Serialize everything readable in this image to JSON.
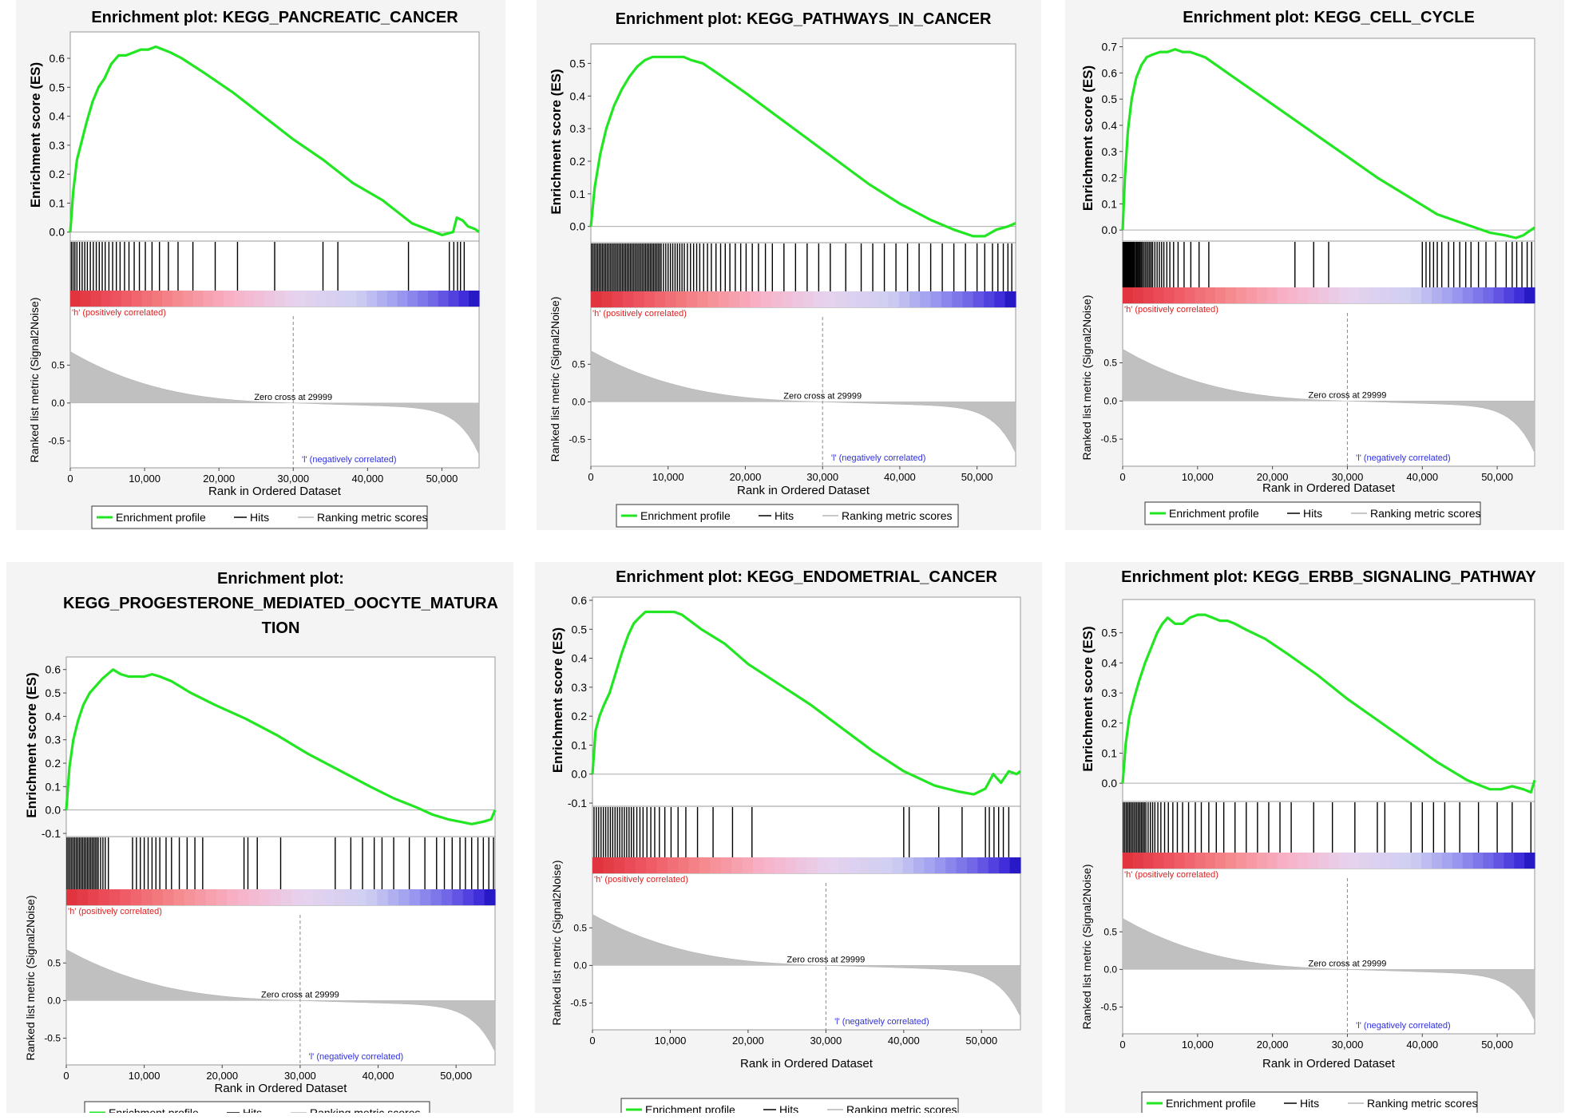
{
  "common": {
    "es_ylabel": "Enrichment score (ES)",
    "metric_ylabel": "Ranked list metric (Signal2Noise)",
    "xlabel": "Rank in Ordered Dataset",
    "pos_label": "'h' (positively correlated)",
    "neg_label": "'l' (negatively correlated)",
    "zero_cross": "Zero cross at 29999",
    "legend": [
      "Enrichment profile",
      "Hits",
      "Ranking metric scores"
    ],
    "x_ticks": [
      "0",
      "10,000",
      "20,000",
      "30,000",
      "40,000",
      "50,000"
    ],
    "colors": {
      "profile": "#22e622",
      "hits": "#000000",
      "metric": "#c0c0c0",
      "pos_text": "#e02020",
      "neg_text": "#3030e0"
    }
  },
  "chart_data": [
    {
      "type": "line",
      "title_lines": [
        "Enrichment plot: KEGG_PANCREATIC_CANCER"
      ],
      "xlim": [
        0,
        55000
      ],
      "es_ylim": [
        -0.02,
        0.68
      ],
      "es_ticks": [
        0.0,
        0.1,
        0.2,
        0.3,
        0.4,
        0.5,
        0.6
      ],
      "metric_ticks": [
        0.5,
        0.0,
        -0.5
      ],
      "metric_ylim": [
        -0.75,
        0.62
      ],
      "zero_cross_x": 29999,
      "series": [
        {
          "name": "Enrichment profile",
          "x": [
            0,
            400,
            900,
            1500,
            2200,
            3000,
            3800,
            4600,
            5500,
            6500,
            7500,
            8500,
            9500,
            10500,
            11500,
            12500,
            13500,
            15000,
            18000,
            22000,
            26000,
            30000,
            34000,
            38000,
            42000,
            46000,
            50000,
            51500,
            52000,
            52800,
            53500,
            54500,
            55000
          ],
          "y": [
            0.0,
            0.14,
            0.25,
            0.31,
            0.38,
            0.45,
            0.5,
            0.53,
            0.58,
            0.61,
            0.61,
            0.62,
            0.63,
            0.63,
            0.64,
            0.63,
            0.62,
            0.6,
            0.55,
            0.48,
            0.4,
            0.32,
            0.25,
            0.17,
            0.11,
            0.03,
            -0.01,
            0.0,
            0.05,
            0.04,
            0.02,
            0.01,
            0.0
          ]
        }
      ],
      "hits": [
        150,
        380,
        620,
        900,
        1250,
        1600,
        1950,
        2300,
        2700,
        3100,
        3500,
        3900,
        4300,
        4700,
        5200,
        5700,
        6200,
        6700,
        7300,
        7900,
        8600,
        9300,
        10100,
        11000,
        12000,
        13200,
        14500,
        16500,
        19500,
        22500,
        27500,
        34000,
        36000,
        45500,
        51000,
        51600,
        52100,
        52500,
        53000
      ]
    },
    {
      "type": "line",
      "title_lines": [
        "Enrichment plot: KEGG_PATHWAYS_IN_CANCER"
      ],
      "xlim": [
        0,
        55000
      ],
      "es_ylim": [
        -0.04,
        0.55
      ],
      "es_ticks": [
        0.0,
        0.1,
        0.2,
        0.3,
        0.4,
        0.5
      ],
      "metric_ticks": [
        0.5,
        0.0,
        -0.5
      ],
      "metric_ylim": [
        -0.75,
        0.62
      ],
      "zero_cross_x": 29999,
      "series": [
        {
          "name": "Enrichment profile",
          "x": [
            0,
            500,
            1200,
            2000,
            3000,
            4000,
            5000,
            6000,
            7000,
            8000,
            9000,
            10000,
            11000,
            12000,
            13000,
            14500,
            17000,
            20000,
            24000,
            28000,
            32000,
            36000,
            40000,
            44000,
            47000,
            49500,
            51000,
            52500,
            54000,
            55000
          ],
          "y": [
            0.0,
            0.12,
            0.22,
            0.3,
            0.37,
            0.42,
            0.46,
            0.49,
            0.51,
            0.52,
            0.52,
            0.52,
            0.52,
            0.52,
            0.51,
            0.5,
            0.46,
            0.41,
            0.34,
            0.27,
            0.2,
            0.13,
            0.07,
            0.02,
            -0.01,
            -0.03,
            -0.03,
            -0.01,
            0.0,
            0.01
          ]
        }
      ],
      "hits": [
        100,
        300,
        500,
        700,
        900,
        1100,
        1300,
        1500,
        1700,
        1900,
        2100,
        2300,
        2500,
        2700,
        2900,
        3100,
        3300,
        3500,
        3700,
        3900,
        4100,
        4300,
        4500,
        4700,
        4900,
        5100,
        5300,
        5500,
        5700,
        5900,
        6100,
        6300,
        6500,
        6700,
        6900,
        7100,
        7300,
        7500,
        7700,
        7900,
        8100,
        8300,
        8500,
        8700,
        8900,
        9100,
        9400,
        9700,
        10000,
        10300,
        10600,
        10900,
        11200,
        11500,
        11800,
        12100,
        12500,
        12900,
        13300,
        13700,
        14100,
        14600,
        15100,
        15600,
        16200,
        16800,
        17400,
        18000,
        18700,
        19400,
        20100,
        20900,
        21700,
        22600,
        23500,
        25000,
        26500,
        28000,
        29500,
        31000,
        33000,
        35000,
        36500,
        38000,
        39500,
        41000,
        42500,
        44000,
        45500,
        47000,
        48500,
        50000,
        51000,
        52000,
        52700,
        53400,
        54000,
        54500
      ]
    },
    {
      "type": "line",
      "title_lines": [
        "Enrichment plot: KEGG_CELL_CYCLE"
      ],
      "xlim": [
        0,
        55000
      ],
      "es_ylim": [
        -0.03,
        0.72
      ],
      "es_ticks": [
        0.0,
        0.1,
        0.2,
        0.3,
        0.4,
        0.5,
        0.6,
        0.7
      ],
      "metric_ticks": [
        0.5,
        0.0,
        -0.5
      ],
      "metric_ylim": [
        -0.75,
        0.62
      ],
      "zero_cross_x": 29999,
      "series": [
        {
          "name": "Enrichment profile",
          "x": [
            0,
            300,
            700,
            1200,
            1800,
            2500,
            3200,
            4000,
            5000,
            6000,
            7000,
            8000,
            9000,
            10000,
            11000,
            12500,
            15000,
            18000,
            22000,
            26000,
            30000,
            34000,
            38000,
            42000,
            46000,
            49000,
            51000,
            52500,
            53500,
            54500,
            55000
          ],
          "y": [
            0.0,
            0.2,
            0.38,
            0.5,
            0.58,
            0.63,
            0.66,
            0.67,
            0.68,
            0.68,
            0.69,
            0.68,
            0.68,
            0.67,
            0.66,
            0.63,
            0.58,
            0.52,
            0.44,
            0.36,
            0.28,
            0.2,
            0.13,
            0.06,
            0.02,
            -0.01,
            -0.02,
            -0.03,
            -0.02,
            0.0,
            0.01
          ]
        }
      ],
      "hits": [
        50,
        150,
        250,
        350,
        450,
        550,
        650,
        750,
        850,
        950,
        1050,
        1150,
        1250,
        1350,
        1450,
        1550,
        1700,
        1850,
        2000,
        2150,
        2300,
        2450,
        2600,
        2800,
        3000,
        3200,
        3400,
        3600,
        3800,
        4000,
        4300,
        4600,
        4900,
        5200,
        5500,
        5900,
        6300,
        6800,
        7400,
        8200,
        9100,
        10200,
        11500,
        23000,
        25500,
        27500,
        40000,
        40500,
        41000,
        41500,
        42000,
        42600,
        43500,
        44200,
        45000,
        45800,
        46500,
        47500,
        48500,
        49800,
        51200,
        52000,
        52600,
        53300,
        54000,
        54600
      ]
    },
    {
      "type": "line",
      "title_lines": [
        "Enrichment plot:",
        "KEGG_PROGESTERONE_MEDIATED_OOCYTE_MATURA",
        "TION"
      ],
      "xlim": [
        0,
        55000
      ],
      "es_ylim": [
        -0.1,
        0.64
      ],
      "es_ticks": [
        -0.1,
        0.0,
        0.1,
        0.2,
        0.3,
        0.4,
        0.5,
        0.6
      ],
      "metric_ticks": [
        0.5,
        0.0,
        -0.5
      ],
      "metric_ylim": [
        -0.75,
        0.62
      ],
      "zero_cross_x": 29999,
      "series": [
        {
          "name": "Enrichment profile",
          "x": [
            0,
            400,
            900,
            1500,
            2200,
            3000,
            3800,
            4600,
            5300,
            6000,
            7000,
            8000,
            9000,
            10000,
            11000,
            12000,
            13500,
            16000,
            19000,
            23000,
            27000,
            31000,
            35000,
            39000,
            42000,
            45000,
            47000,
            49000,
            50500,
            52000,
            53500,
            54500,
            55000
          ],
          "y": [
            0.0,
            0.18,
            0.3,
            0.38,
            0.45,
            0.5,
            0.53,
            0.56,
            0.58,
            0.6,
            0.58,
            0.57,
            0.57,
            0.57,
            0.58,
            0.57,
            0.55,
            0.5,
            0.45,
            0.39,
            0.32,
            0.24,
            0.17,
            0.1,
            0.05,
            0.01,
            -0.02,
            -0.04,
            -0.05,
            -0.06,
            -0.05,
            -0.04,
            0.0
          ]
        }
      ],
      "hits": [
        100,
        300,
        500,
        700,
        900,
        1100,
        1300,
        1500,
        1700,
        1900,
        2100,
        2300,
        2500,
        2700,
        2900,
        3100,
        3300,
        3500,
        3700,
        3900,
        4100,
        4400,
        4700,
        5000,
        5400,
        8500,
        9000,
        9500,
        10000,
        10500,
        11000,
        11500,
        12000,
        12800,
        13500,
        14500,
        15500,
        16500,
        17500,
        22800,
        23300,
        24500,
        27500,
        34500,
        36500,
        38000,
        39500,
        40500,
        42000,
        44000,
        46000,
        47500,
        48500,
        49500,
        50500,
        51200,
        52000,
        52800,
        53500,
        54200,
        54800
      ]
    },
    {
      "type": "line",
      "title_lines": [
        "Enrichment plot: KEGG_ENDOMETRIAL_CANCER"
      ],
      "xlim": [
        0,
        55000
      ],
      "es_ylim": [
        -0.1,
        0.6
      ],
      "es_ticks": [
        -0.1,
        0.0,
        0.1,
        0.2,
        0.3,
        0.4,
        0.5,
        0.6
      ],
      "metric_ticks": [
        0.5,
        0.0,
        -0.5
      ],
      "metric_ylim": [
        -0.75,
        0.62
      ],
      "zero_cross_x": 29999,
      "series": [
        {
          "name": "Enrichment profile",
          "x": [
            0,
            400,
            900,
            1500,
            2200,
            3000,
            3800,
            4600,
            5300,
            6000,
            6800,
            7500,
            8500,
            9500,
            10500,
            11500,
            12500,
            14000,
            17000,
            20000,
            24000,
            28000,
            32000,
            36000,
            40000,
            44000,
            47000,
            49000,
            50500,
            51500,
            52500,
            53500,
            54500,
            55000
          ],
          "y": [
            0.0,
            0.15,
            0.2,
            0.24,
            0.28,
            0.35,
            0.42,
            0.48,
            0.52,
            0.54,
            0.56,
            0.56,
            0.56,
            0.56,
            0.56,
            0.55,
            0.53,
            0.5,
            0.45,
            0.38,
            0.31,
            0.24,
            0.16,
            0.08,
            0.01,
            -0.04,
            -0.06,
            -0.07,
            -0.05,
            0.0,
            -0.03,
            0.01,
            0.0,
            0.01
          ]
        }
      ],
      "hits": [
        200,
        500,
        800,
        1100,
        1400,
        1700,
        2000,
        2300,
        2600,
        2900,
        3200,
        3500,
        3800,
        4100,
        4400,
        4700,
        5000,
        5300,
        5700,
        6100,
        6500,
        7000,
        7500,
        8000,
        8600,
        9300,
        10100,
        11000,
        12000,
        13500,
        15500,
        18000,
        20500,
        40000,
        40700,
        44500,
        47500,
        50500,
        51000,
        51600,
        52200,
        52800,
        53500
      ]
    },
    {
      "type": "line",
      "title_lines": [
        "Enrichment plot: KEGG_ERBB_SIGNALING_PATHWAY"
      ],
      "xlim": [
        0,
        55000
      ],
      "es_ylim": [
        -0.05,
        0.6
      ],
      "es_ticks": [
        0.0,
        0.1,
        0.2,
        0.3,
        0.4,
        0.5
      ],
      "metric_ticks": [
        0.5,
        0.0,
        -0.5
      ],
      "metric_ylim": [
        -0.75,
        0.62
      ],
      "zero_cross_x": 29999,
      "series": [
        {
          "name": "Enrichment profile",
          "x": [
            0,
            400,
            900,
            1500,
            2200,
            3000,
            3800,
            4600,
            5300,
            6000,
            7000,
            8000,
            9000,
            10000,
            11000,
            12000,
            13000,
            14000,
            15000,
            16500,
            19000,
            22000,
            26000,
            30000,
            34000,
            38000,
            42000,
            46000,
            49000,
            50500,
            52000,
            53500,
            54500,
            55000
          ],
          "y": [
            0.0,
            0.13,
            0.22,
            0.28,
            0.34,
            0.4,
            0.45,
            0.5,
            0.53,
            0.55,
            0.53,
            0.53,
            0.55,
            0.56,
            0.56,
            0.55,
            0.54,
            0.54,
            0.53,
            0.51,
            0.48,
            0.43,
            0.36,
            0.28,
            0.21,
            0.14,
            0.07,
            0.01,
            -0.02,
            -0.02,
            -0.01,
            -0.02,
            -0.03,
            0.01
          ]
        }
      ],
      "hits": [
        100,
        300,
        500,
        700,
        900,
        1100,
        1300,
        1500,
        1700,
        1900,
        2100,
        2300,
        2500,
        2700,
        2900,
        3100,
        3400,
        3700,
        4000,
        4300,
        4700,
        5100,
        5600,
        6100,
        6700,
        7300,
        8000,
        8800,
        9700,
        10500,
        11500,
        12500,
        13500,
        15000,
        16500,
        18000,
        19500,
        21000,
        22500,
        25500,
        28000,
        31000,
        34000,
        35000,
        38500,
        40000,
        41500,
        43000,
        45000,
        47500,
        50000,
        52000,
        54500
      ]
    }
  ]
}
